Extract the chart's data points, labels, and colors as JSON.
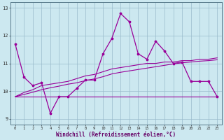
{
  "xlabel": "Windchill (Refroidissement éolien,°C)",
  "x": [
    0,
    1,
    2,
    3,
    4,
    5,
    6,
    7,
    8,
    9,
    10,
    11,
    12,
    13,
    14,
    15,
    16,
    17,
    18,
    19,
    20,
    21,
    22,
    23
  ],
  "line1": [
    11.7,
    10.5,
    10.2,
    10.3,
    9.2,
    9.8,
    9.8,
    10.1,
    10.4,
    10.4,
    11.35,
    11.9,
    12.8,
    12.5,
    11.35,
    11.15,
    11.8,
    11.45,
    11.0,
    11.05,
    10.35,
    10.35,
    10.35,
    9.8
  ],
  "line2": [
    9.8,
    9.8,
    9.8,
    9.8,
    9.8,
    9.8,
    9.8,
    9.8,
    9.8,
    9.8,
    9.8,
    9.8,
    9.8,
    9.8,
    9.8,
    9.8,
    9.8,
    9.8,
    9.8,
    9.8,
    9.8,
    9.8,
    9.8,
    9.8
  ],
  "line3": [
    9.8,
    9.95,
    10.05,
    10.2,
    10.25,
    10.3,
    10.35,
    10.45,
    10.55,
    10.6,
    10.7,
    10.8,
    10.85,
    10.9,
    10.95,
    11.0,
    11.0,
    11.05,
    11.05,
    11.1,
    11.1,
    11.15,
    11.15,
    11.2
  ],
  "line4": [
    9.8,
    9.88,
    9.96,
    10.05,
    10.12,
    10.18,
    10.25,
    10.3,
    10.38,
    10.44,
    10.52,
    10.62,
    10.68,
    10.73,
    10.78,
    10.83,
    10.88,
    10.93,
    10.98,
    11.02,
    11.05,
    11.08,
    11.1,
    11.13
  ],
  "line_color": "#990099",
  "bg_color": "#cce8f0",
  "grid_color": "#99bbcc",
  "ylim": [
    8.8,
    13.2
  ],
  "yticks": [
    9,
    10,
    11,
    12,
    13
  ]
}
